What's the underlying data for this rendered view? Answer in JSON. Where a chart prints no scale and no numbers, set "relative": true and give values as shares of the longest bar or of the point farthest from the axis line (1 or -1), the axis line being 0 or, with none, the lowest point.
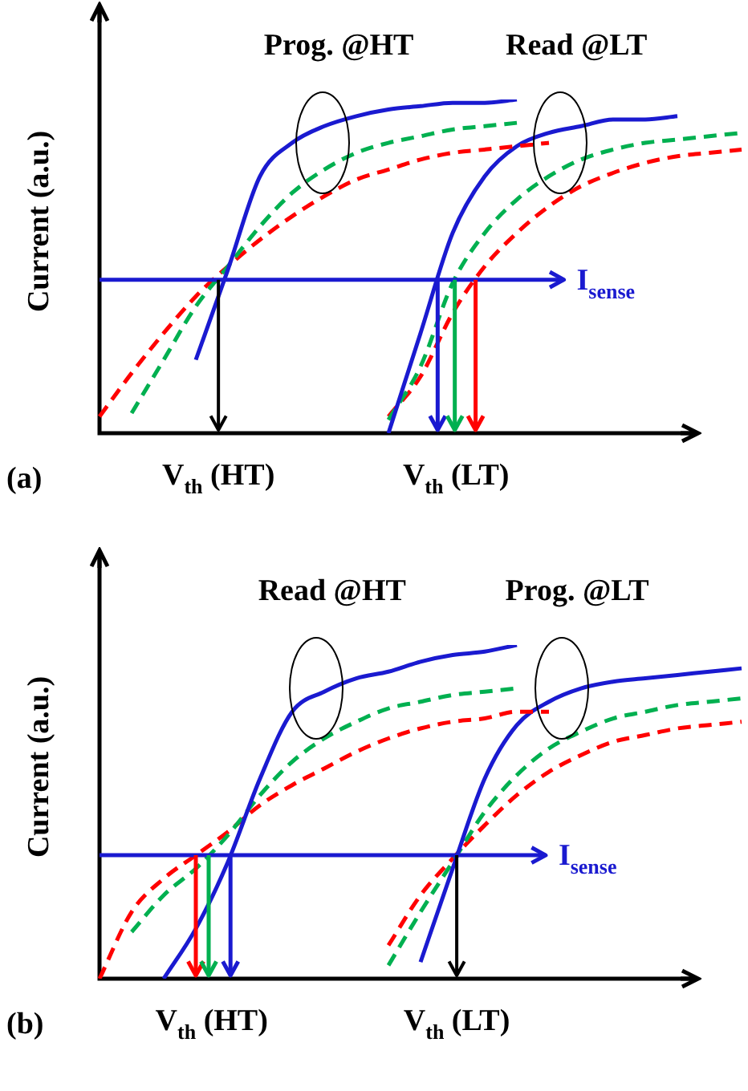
{
  "chart_data": [
    {
      "type": "line",
      "relative": true,
      "title": "(a)",
      "ylabel": "Current (a.u.)",
      "legend": false,
      "grid": false,
      "marker": "none",
      "categories": [
        null,
        null,
        null,
        null,
        null,
        null,
        null,
        null,
        null,
        null,
        null,
        null,
        null,
        null,
        null,
        null,
        null,
        null,
        null,
        null,
        null
      ],
      "annotations": [
        "Prog. @HT",
        "Read @LT",
        "V$_{th}$ (HT)",
        "V$_{th}$ (LT)"
      ],
      "ref_lines": [
        {
          "axis": "y",
          "value": 0.46,
          "label": "I$_{sense}$",
          "color": "#1a1ad0"
        }
      ],
      "series": [
        {
          "color": "#1a1ad0",
          "line_style": "solid",
          "values": [
            null,
            null,
            null,
            0.22,
            0.49,
            0.77,
            0.87,
            0.92,
            0.95,
            0.97,
            0.98,
            0.99,
            0.99,
            1.0,
            null,
            null,
            null,
            null,
            null,
            null,
            null
          ]
        },
        {
          "color": "#00b050",
          "line_style": "dashed",
          "values": [
            null,
            0.06,
            0.22,
            0.38,
            0.5,
            0.62,
            0.72,
            0.79,
            0.84,
            0.87,
            0.89,
            0.91,
            0.92,
            0.93,
            null,
            null,
            null,
            null,
            null,
            null,
            null
          ]
        },
        {
          "color": "#ff0000",
          "line_style": "dashed",
          "values": [
            0.05,
            0.18,
            0.3,
            0.41,
            0.5,
            0.58,
            0.65,
            0.71,
            0.76,
            0.79,
            0.82,
            0.84,
            0.85,
            0.86,
            0.87,
            null,
            null,
            null,
            null,
            null,
            null
          ]
        },
        {
          "color": "#1a1ad0",
          "line_style": "solid",
          "values": [
            null,
            null,
            null,
            null,
            null,
            null,
            null,
            null,
            null,
            0.0,
            0.3,
            0.6,
            0.77,
            0.86,
            0.9,
            0.92,
            0.94,
            0.94,
            0.95,
            null,
            null
          ]
        },
        {
          "color": "#00b050",
          "line_style": "dashed",
          "values": [
            null,
            null,
            null,
            null,
            null,
            null,
            null,
            null,
            null,
            0.04,
            0.2,
            0.45,
            0.6,
            0.7,
            0.77,
            0.82,
            0.85,
            0.87,
            0.88,
            0.89,
            0.9
          ]
        },
        {
          "color": "#ff0000",
          "line_style": "dashed",
          "values": [
            null,
            null,
            null,
            null,
            null,
            null,
            null,
            null,
            null,
            0.05,
            0.17,
            0.36,
            0.5,
            0.6,
            0.68,
            0.74,
            0.78,
            0.81,
            0.83,
            0.84,
            0.85
          ]
        }
      ]
    },
    {
      "type": "line",
      "relative": true,
      "title": "(b)",
      "ylabel": "Current (a.u.)",
      "legend": false,
      "grid": false,
      "marker": "none",
      "categories": [
        null,
        null,
        null,
        null,
        null,
        null,
        null,
        null,
        null,
        null,
        null,
        null,
        null,
        null,
        null,
        null,
        null,
        null,
        null,
        null,
        null
      ],
      "annotations": [
        "Read @HT",
        "Prog. @LT",
        "V$_{th}$ (HT)",
        "V$_{th}$ (LT)"
      ],
      "ref_lines": [
        {
          "axis": "y",
          "value": 0.37,
          "label": "I$_{sense}$",
          "color": "#1a1ad0"
        }
      ],
      "series": [
        {
          "color": "#1a1ad0",
          "line_style": "solid",
          "values": [
            null,
            null,
            0.0,
            0.15,
            0.35,
            0.6,
            0.8,
            0.86,
            0.9,
            0.92,
            0.95,
            0.97,
            0.98,
            1.0,
            null,
            null,
            null,
            null,
            null,
            null,
            null
          ]
        },
        {
          "color": "#00b050",
          "line_style": "dashed",
          "values": [
            null,
            0.14,
            0.25,
            0.33,
            0.43,
            0.55,
            0.65,
            0.72,
            0.77,
            0.81,
            0.83,
            0.85,
            0.86,
            0.87,
            null,
            null,
            null,
            null,
            null,
            null,
            null
          ]
        },
        {
          "color": "#ff0000",
          "line_style": "dashed",
          "values": [
            0.0,
            0.2,
            0.3,
            0.37,
            0.44,
            0.52,
            0.58,
            0.63,
            0.68,
            0.72,
            0.75,
            0.77,
            0.78,
            0.8,
            0.8,
            null,
            null,
            null,
            null,
            null,
            null
          ]
        },
        {
          "color": "#1a1ad0",
          "line_style": "solid",
          "values": [
            null,
            null,
            null,
            null,
            null,
            null,
            null,
            null,
            null,
            null,
            0.05,
            0.33,
            0.6,
            0.76,
            0.83,
            0.87,
            0.89,
            0.9,
            0.91,
            0.92,
            0.93
          ]
        },
        {
          "color": "#00b050",
          "line_style": "dashed",
          "values": [
            null,
            null,
            null,
            null,
            null,
            null,
            null,
            null,
            null,
            0.04,
            0.2,
            0.35,
            0.5,
            0.61,
            0.69,
            0.74,
            0.78,
            0.8,
            0.82,
            0.83,
            0.84
          ]
        },
        {
          "color": "#ff0000",
          "line_style": "dashed",
          "values": [
            null,
            null,
            null,
            null,
            null,
            null,
            null,
            null,
            null,
            0.1,
            0.25,
            0.36,
            0.46,
            0.55,
            0.62,
            0.67,
            0.71,
            0.73,
            0.75,
            0.76,
            0.77
          ]
        }
      ]
    }
  ]
}
